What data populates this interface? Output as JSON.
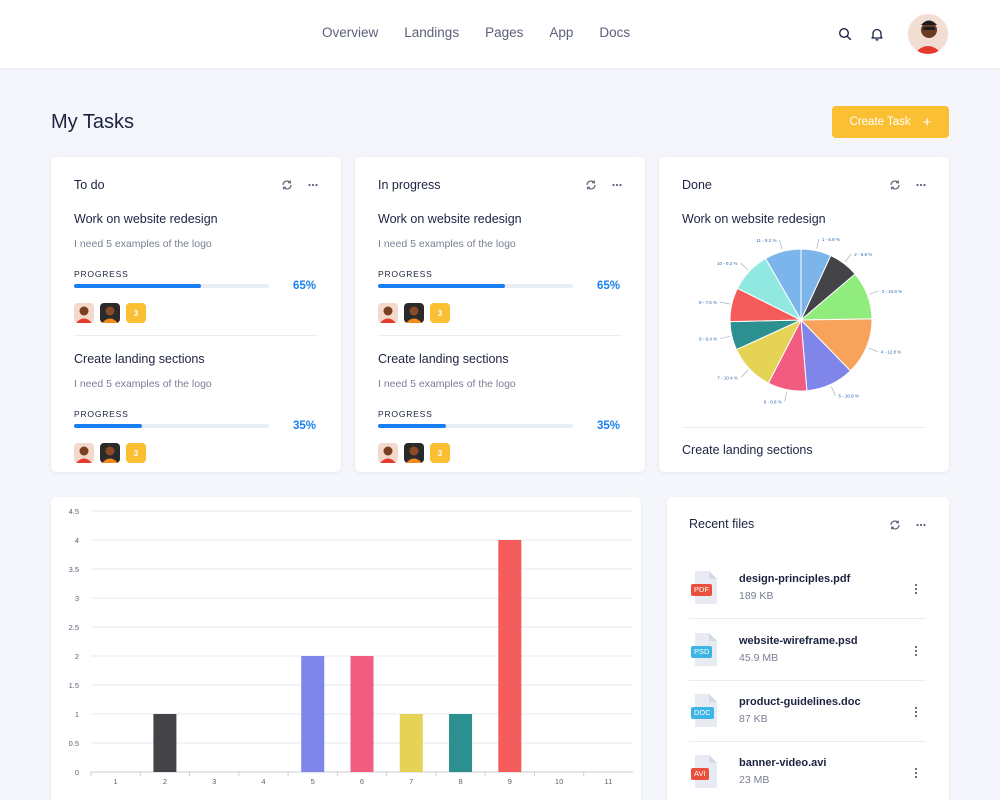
{
  "nav": {
    "items": [
      "Overview",
      "Landings",
      "Pages",
      "App",
      "Docs"
    ]
  },
  "header": {
    "title": "My Tasks",
    "create_label": "Create Task"
  },
  "icons": {
    "search": "search-icon",
    "bell": "bell-icon",
    "refresh": "refresh-icon",
    "more": "more-horizontal-icon",
    "file": "file-icon",
    "plus": "plus-icon"
  },
  "colors": {
    "accent": "#1a7ff0",
    "button": "#fbbf34",
    "badge": "#fbbf34"
  },
  "columns": [
    {
      "title": "To do",
      "tasks": [
        {
          "title": "Work on website redesign",
          "desc": "I need 5 examples of the logo",
          "progress_label": "PROGRESS",
          "progress": 65,
          "progress_text": "65%",
          "badge": "3"
        },
        {
          "title": "Create landing sections",
          "desc": "I need 5 examples of the logo",
          "progress_label": "PROGRESS",
          "progress": 35,
          "progress_text": "35%",
          "badge": "3"
        }
      ]
    },
    {
      "title": "In progress",
      "tasks": [
        {
          "title": "Work on website redesign",
          "desc": "I need 5 examples of the logo",
          "progress_label": "PROGRESS",
          "progress": 65,
          "progress_text": "65%",
          "badge": "3"
        },
        {
          "title": "Create landing sections",
          "desc": "I need 5 examples of the logo",
          "progress_label": "PROGRESS",
          "progress": 35,
          "progress_text": "35%",
          "badge": "3"
        }
      ]
    },
    {
      "title": "Done",
      "tasks": [
        {
          "title": "Work on website redesign"
        },
        {
          "title": "Create landing sections"
        }
      ]
    }
  ],
  "chart_data": [
    {
      "type": "pie",
      "labels": [
        "1 - 6.8 %",
        "2 - 6.8 %",
        "3 - 10.8 %",
        "4 - 12.8 %",
        "5 - 10.8 %",
        "6 - 8.8 %",
        "7 - 10.4 %",
        "8 - 6.4 %",
        "9 - 7.6 %",
        "10 - 9.2 %",
        "11 - 8.2 %"
      ],
      "values": [
        6.8,
        6.8,
        10.8,
        12.8,
        10.8,
        8.8,
        10.4,
        6.4,
        7.6,
        9.2,
        8.2
      ],
      "colors": [
        "#7cb5ec",
        "#434348",
        "#90ed7d",
        "#f7a35c",
        "#8085e9",
        "#f15c80",
        "#e4d354",
        "#2b908f",
        "#f45b5b",
        "#91e8e1",
        "#7cb5ec"
      ]
    },
    {
      "type": "bar",
      "categories": [
        "1",
        "2",
        "3",
        "4",
        "5",
        "6",
        "7",
        "8",
        "9",
        "10",
        "11"
      ],
      "values": [
        0,
        1,
        0,
        0,
        2,
        2,
        1,
        1,
        4,
        0,
        0
      ],
      "colors": [
        "#cccccc",
        "#434348",
        "#cccccc",
        "#cccccc",
        "#8085e9",
        "#f15c80",
        "#e4d354",
        "#2b908f",
        "#f45b5b",
        "#cccccc",
        "#cccccc"
      ],
      "yticks": [
        "0",
        "0.5",
        "1",
        "1.5",
        "2",
        "2.5",
        "3",
        "3.5",
        "4",
        "4.5"
      ],
      "ylim": [
        0,
        4.5
      ],
      "grid": true
    }
  ],
  "files": {
    "title": "Recent files",
    "items": [
      {
        "name": "design-principles.pdf",
        "size": "189 KB",
        "ext": "PDF",
        "color": "#e9503e"
      },
      {
        "name": "website-wireframe.psd",
        "size": "45.9 MB",
        "ext": "PSD",
        "color": "#3cb4e5"
      },
      {
        "name": "product-guidelines.doc",
        "size": "87 KB",
        "ext": "DOC",
        "color": "#3cb4e5"
      },
      {
        "name": "banner-video.avi",
        "size": "23 MB",
        "ext": "AVI",
        "color": "#e9503e"
      }
    ]
  }
}
